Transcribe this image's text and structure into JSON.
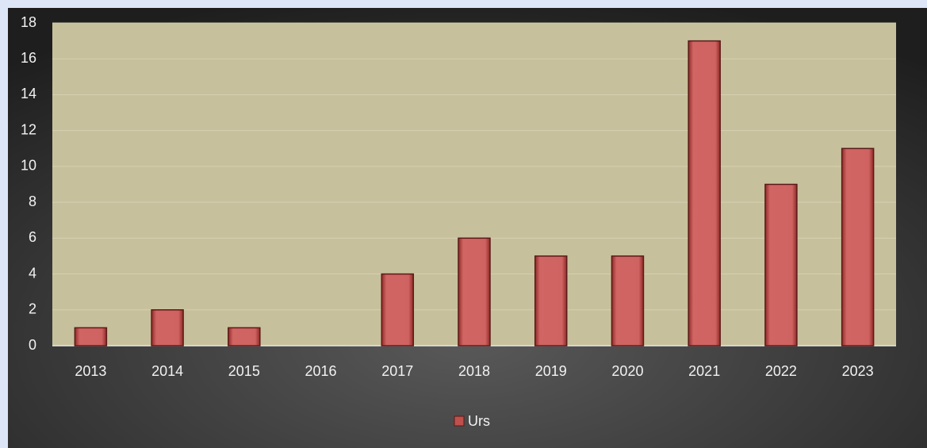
{
  "chart_data": {
    "type": "bar",
    "categories": [
      "2013",
      "2014",
      "2015",
      "2016",
      "2017",
      "2018",
      "2019",
      "2020",
      "2021",
      "2022",
      "2023"
    ],
    "series": [
      {
        "name": "Urs",
        "color": "#c0504d",
        "values": [
          1,
          2,
          1,
          0,
          4,
          6,
          5,
          5,
          17,
          9,
          11
        ]
      }
    ],
    "ylim": [
      0,
      18
    ],
    "yticks": [
      0,
      2,
      4,
      6,
      8,
      10,
      12,
      14,
      16,
      18
    ],
    "grid": true,
    "legend": "bottom"
  }
}
